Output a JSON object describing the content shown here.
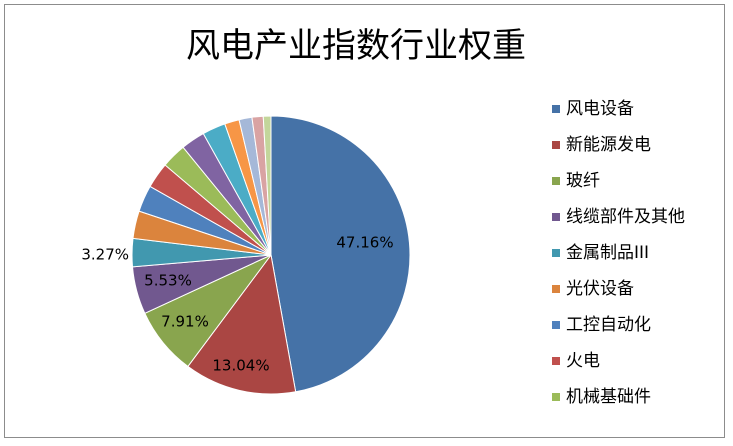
{
  "chart_data": {
    "type": "pie",
    "title": "风电产业指数行业权重",
    "start_angle_deg": 0,
    "direction": "clockwise",
    "slices": [
      {
        "name": "风电设备",
        "value": 47.16,
        "label": "47.16%",
        "color": "#4572A7"
      },
      {
        "name": "新能源发电",
        "value": 13.04,
        "label": "13.04%",
        "color": "#AA4643"
      },
      {
        "name": "玻纤",
        "value": 7.91,
        "label": "7.91%",
        "color": "#89A54E"
      },
      {
        "name": "线缆部件及其他",
        "value": 5.53,
        "label": "5.53%",
        "color": "#71588F"
      },
      {
        "name": "金属制品III",
        "value": 3.27,
        "label": "3.27%",
        "color": "#4198AF"
      },
      {
        "name": "光伏设备",
        "value": 3.2,
        "label": "",
        "color": "#DB843D"
      },
      {
        "name": "工控自动化",
        "value": 3.1,
        "label": "",
        "color": "#4F81BD"
      },
      {
        "name": "火电",
        "value": 3.0,
        "label": "",
        "color": "#C0504D"
      },
      {
        "name": "机械基础件",
        "value": 2.9,
        "label": "",
        "color": "#9BBB59"
      },
      {
        "name": "",
        "value": 2.8,
        "label": "",
        "color": "#8064A2"
      },
      {
        "name": "",
        "value": 2.7,
        "label": "",
        "color": "#4BACC6"
      },
      {
        "name": "",
        "value": 1.7,
        "label": "",
        "color": "#F79646"
      },
      {
        "name": "",
        "value": 1.5,
        "label": "",
        "color": "#A5B8D8"
      },
      {
        "name": "",
        "value": 1.3,
        "label": "",
        "color": "#D9A3A3"
      },
      {
        "name": "",
        "value": 0.89,
        "label": "",
        "color": "#C3D69B"
      }
    ],
    "legend": {
      "position": "right",
      "items": [
        "风电设备",
        "新能源发电",
        "玻纤",
        "线缆部件及其他",
        "金属制品III",
        "光伏设备",
        "工控自动化",
        "火电",
        "机械基础件"
      ]
    }
  }
}
